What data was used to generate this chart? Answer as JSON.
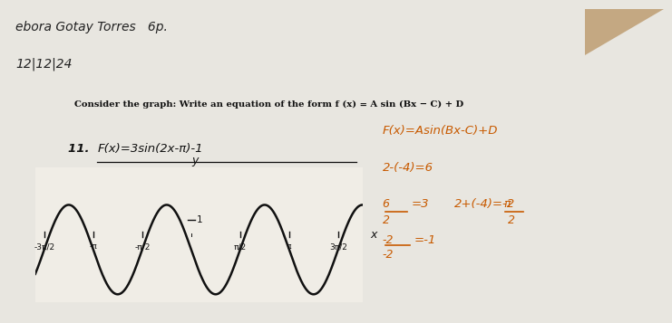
{
  "A": 3,
  "B": 2,
  "C": 3.14159265358979,
  "D": -1,
  "x_min": -5.0,
  "x_max": 5.5,
  "y_min": -4.5,
  "y_max": 4.5,
  "background_color": "#e8e6e0",
  "paper_color": "#f0ede6",
  "curve_color": "#111111",
  "axis_color": "#111111",
  "curve_linewidth": 1.8,
  "header1": "Debora Gotay Torres   6p.",
  "header2": "12|12|24",
  "instruction": "Consider the graph: Write an equation of the form f (x) = A sin (Bx − C) + D",
  "prob_num": "11. ",
  "prob_answer": "F(x)=3sin(2x-π)-1",
  "rhs1": "F(x)=Asin(Bx-C)+D",
  "rhs2": "2-(-4)=6",
  "rhs3a": "6",
  "rhs3b": "=3",
  "rhs3c": "2+(-4)=-2",
  "rhs4a": "-2",
  "rhs4b": "=-1",
  "rhs4c": "π",
  "x_ticks_mult": [
    -1.5,
    -1.0,
    -0.5,
    0.5,
    1.0,
    1.5
  ],
  "x_tick_labels": [
    "-3π/2",
    "-π",
    "-π/2",
    "π/2",
    "π",
    "3π/2"
  ],
  "y_label_val": 1,
  "y_label_str": "1"
}
